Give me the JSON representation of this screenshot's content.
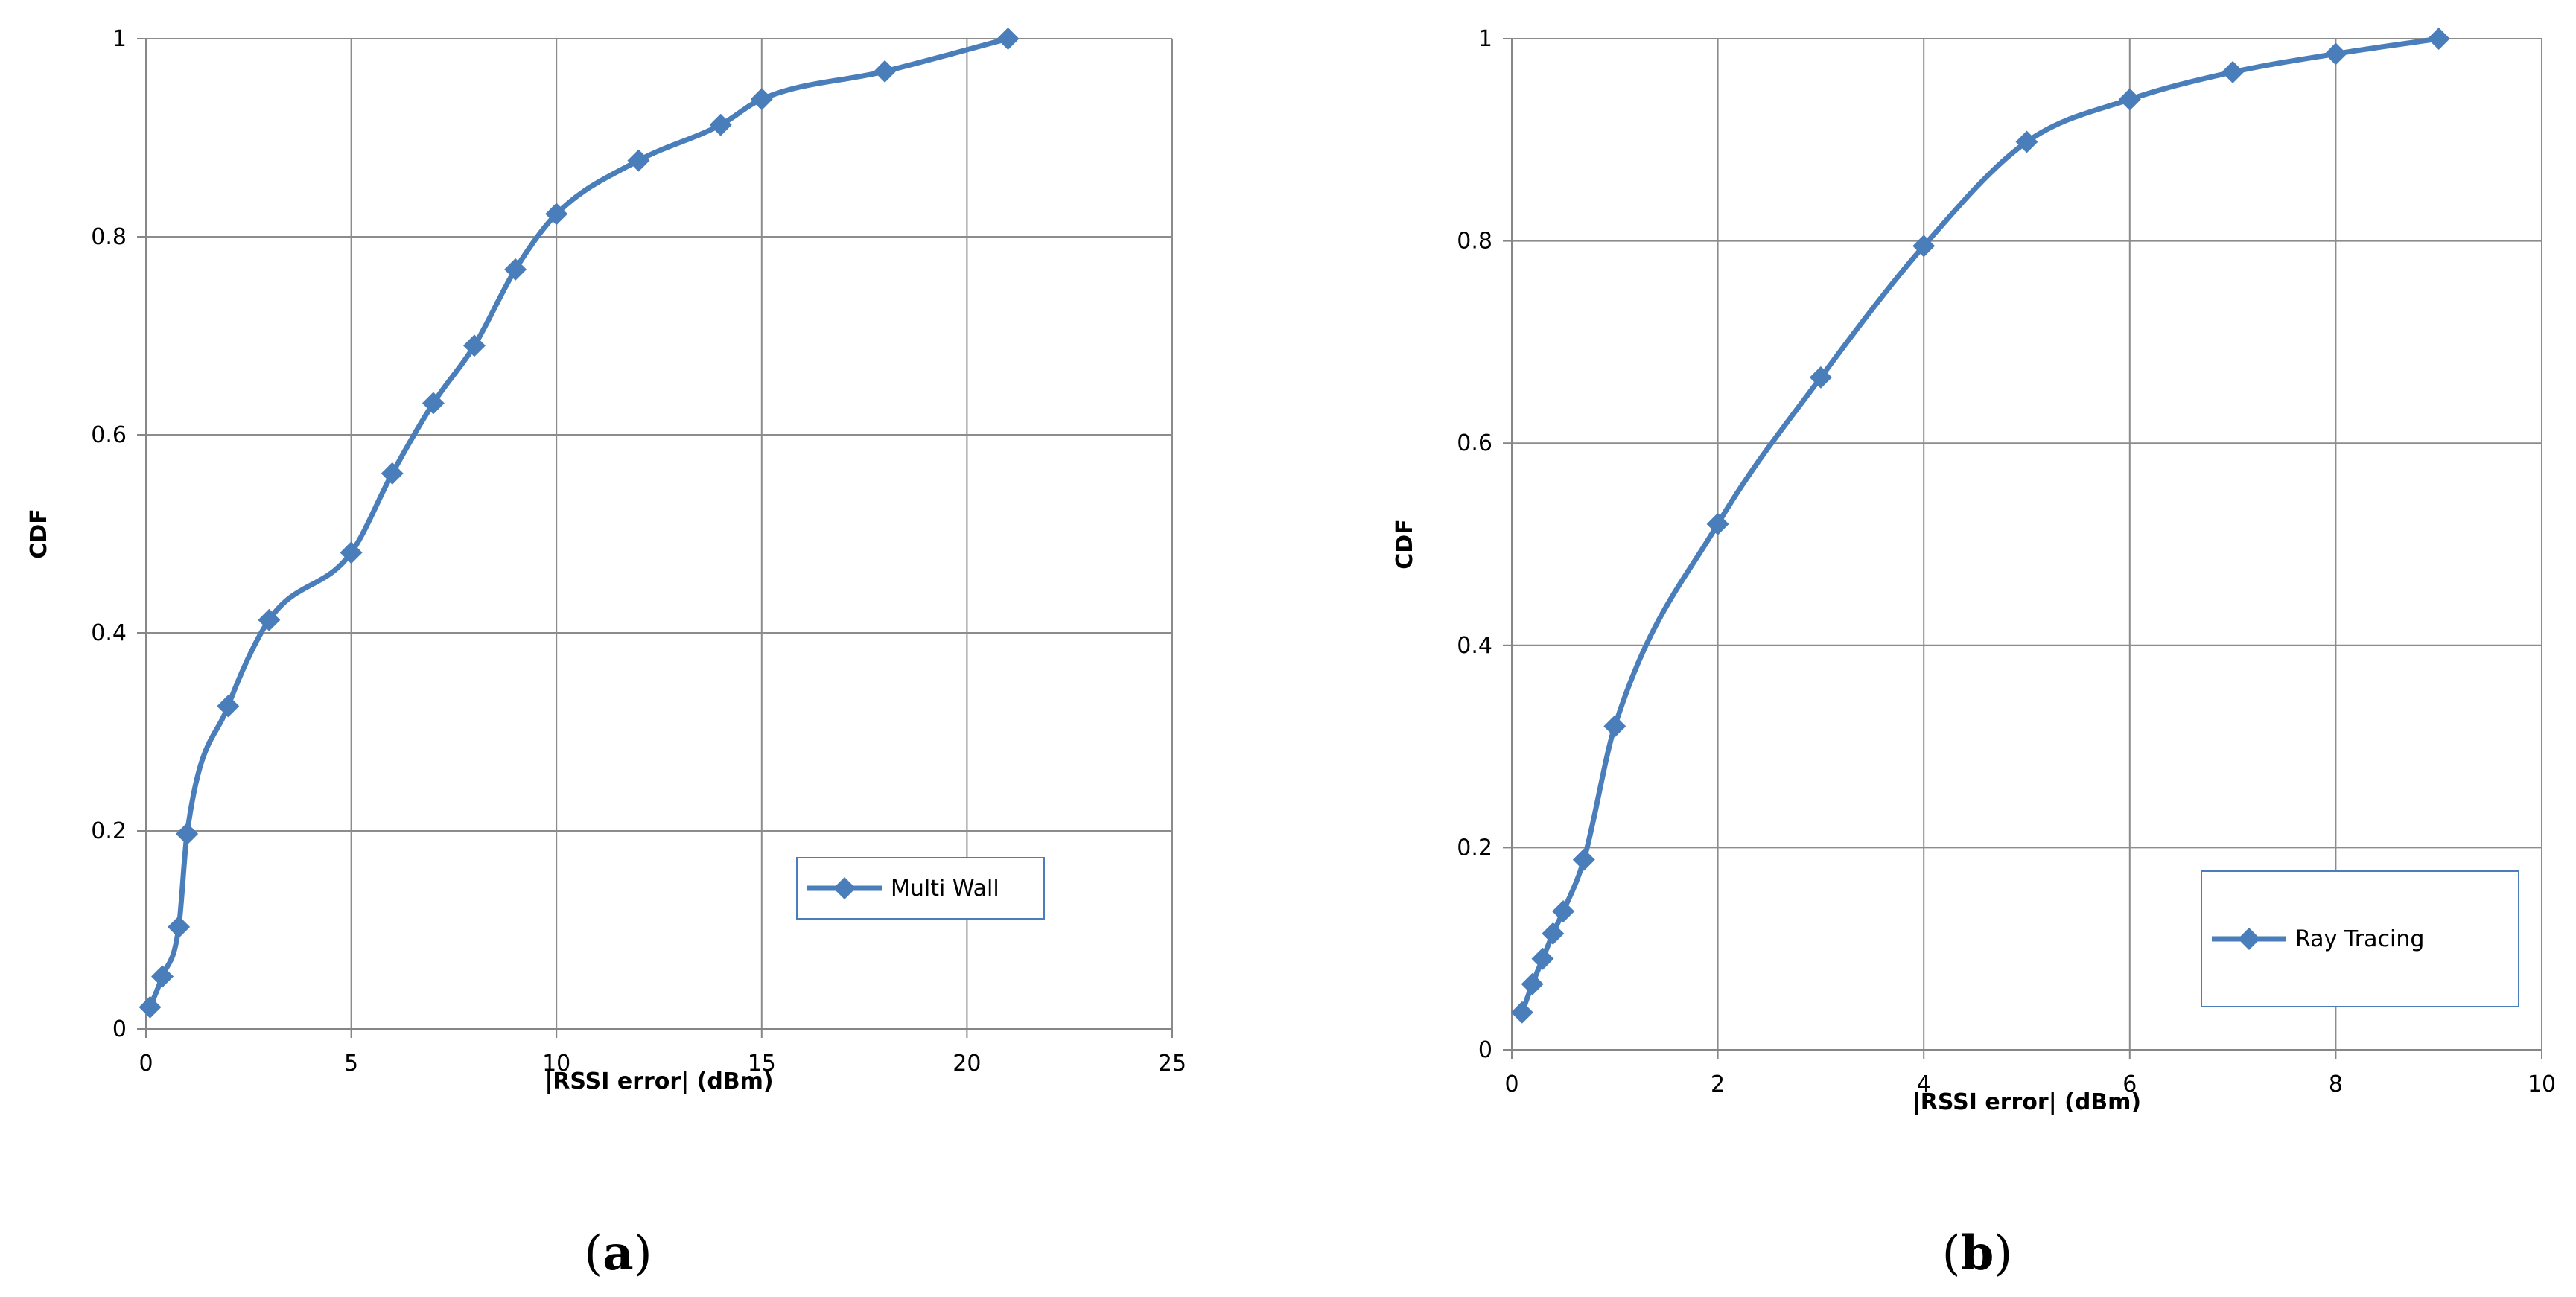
{
  "colors": {
    "series": "#4A7EBB",
    "grid": "#8C8C8C",
    "axis": "#868686",
    "legend_border": "#4A7EBB"
  },
  "panels": [
    {
      "label_open": "(",
      "label_letter": "a",
      "label_close": ")"
    },
    {
      "label_open": "(",
      "label_letter": "b",
      "label_close": ")"
    }
  ],
  "chart_data": [
    {
      "type": "line",
      "title": "",
      "xlabel": "|RSSI error| (dBm)",
      "ylabel": "CDF",
      "xlim": [
        0,
        25
      ],
      "ylim": [
        0,
        1
      ],
      "xticks": [
        "0",
        "5",
        "10",
        "15",
        "20",
        "25"
      ],
      "yticks": [
        "0",
        "0.2",
        "0.4",
        "0.6",
        "0.8",
        "1"
      ],
      "grid": true,
      "legend_placement": "lower-right",
      "series": [
        {
          "name": "Multi Wall",
          "marker": "diamond",
          "x": [
            0.1,
            0.4,
            0.8,
            1,
            2,
            3,
            5,
            6,
            7,
            8,
            9,
            10,
            12,
            14,
            15,
            18,
            21
          ],
          "y": [
            0.022,
            0.053,
            0.103,
            0.197,
            0.326,
            0.413,
            0.481,
            0.561,
            0.632,
            0.69,
            0.767,
            0.823,
            0.877,
            0.913,
            0.939,
            0.967,
            1.0
          ]
        }
      ]
    },
    {
      "type": "line",
      "title": "",
      "xlabel": "|RSSI error| (dBm)",
      "ylabel": "CDF",
      "xlim": [
        0,
        10
      ],
      "ylim": [
        0,
        1
      ],
      "xticks": [
        "0",
        "2",
        "4",
        "6",
        "8",
        "10"
      ],
      "yticks": [
        "0",
        "0.2",
        "0.4",
        "0.6",
        "0.8",
        "1"
      ],
      "grid": true,
      "legend_placement": "lower-right",
      "series": [
        {
          "name": "Ray Tracing",
          "marker": "diamond",
          "x": [
            0.1,
            0.2,
            0.3,
            0.4,
            0.5,
            0.7,
            1,
            2,
            3,
            4,
            5,
            6,
            7,
            8,
            9
          ],
          "y": [
            0.037,
            0.065,
            0.09,
            0.115,
            0.137,
            0.188,
            0.32,
            0.52,
            0.665,
            0.795,
            0.898,
            0.94,
            0.967,
            0.985,
            1.0
          ]
        }
      ]
    }
  ]
}
